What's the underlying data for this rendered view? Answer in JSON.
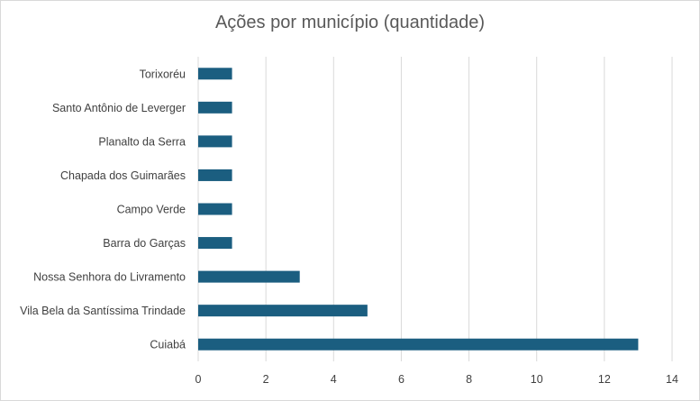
{
  "chart_data": {
    "type": "bar",
    "orientation": "horizontal",
    "title": "Ações por município (quantidade)",
    "categories": [
      "Torixoréu",
      "Santo Antônio de Leverger",
      "Planalto da Serra",
      "Chapada dos Guimarães",
      "Campo Verde",
      "Barra do Garças",
      "Nossa Senhora do Livramento",
      "Vila Bela da Santíssima Trindade",
      "Cuiabá"
    ],
    "values": [
      1,
      1,
      1,
      1,
      1,
      1,
      3,
      5,
      13
    ],
    "xlim": [
      0,
      14
    ],
    "xticks": [
      0,
      2,
      4,
      6,
      8,
      10,
      12,
      14
    ],
    "grid": "vertical",
    "legend": "none",
    "bar_color": "#1b5e80",
    "grid_color": "#d9d9d9"
  }
}
